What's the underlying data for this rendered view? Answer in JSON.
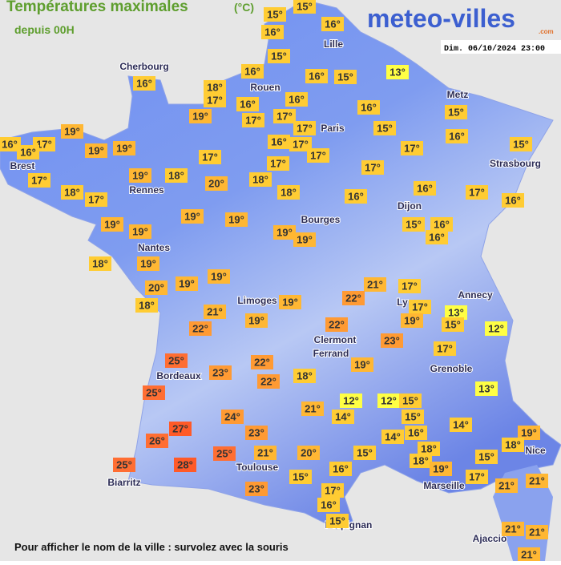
{
  "header": {
    "title": "Températures maximales",
    "unit": "(°C)",
    "subtitle": "depuis 00H",
    "logo": "meteo-villes",
    "logo_suffix": ".com",
    "date": "Dim. 06/10/2024 23:00"
  },
  "cities": [
    "Lille",
    "Cherbourg",
    "Rouen",
    "Metz",
    "Paris",
    "Brest",
    "Strasbourg",
    "Rennes",
    "Dijon",
    "Bourges",
    "Nantes",
    "Annecy",
    "Limoges",
    "Ly",
    "Clermont",
    "Ferrand",
    "Grenoble",
    "Bordeaux",
    "Nice",
    "Toulouse",
    "Marseille",
    "Biarritz",
    "Perpignan",
    "Ajaccio"
  ],
  "temperatures": [
    "15°",
    "15°",
    "16°",
    "16°",
    "15°",
    "16°",
    "18°",
    "17°",
    "16°",
    "16°",
    "15°",
    "13°",
    "16°",
    "16°",
    "16°",
    "15°",
    "19°",
    "17°",
    "17°",
    "17°",
    "15°",
    "16°",
    "19°",
    "16°",
    "17°",
    "16°",
    "19°",
    "19°",
    "16°",
    "17°",
    "17°",
    "17°",
    "15°",
    "17°",
    "17°",
    "19°",
    "18°",
    "20°",
    "18°",
    "17°",
    "17°",
    "18°",
    "17°",
    "18°",
    "16°",
    "16°",
    "17°",
    "16°",
    "19°",
    "19°",
    "19°",
    "19°",
    "15°",
    "16°",
    "16°",
    "19°",
    "19°",
    "18°",
    "19°",
    "19°",
    "19°",
    "20°",
    "21°",
    "17°",
    "18°",
    "19°",
    "22°",
    "21°",
    "17°",
    "13°",
    "15°",
    "19°",
    "12°",
    "22°",
    "19°",
    "22°",
    "23°",
    "17°",
    "25°",
    "22°",
    "19°",
    "23°",
    "22°",
    "18°",
    "13°",
    "25°",
    "21°",
    "12°",
    "12°",
    "15°",
    "14°",
    "15°",
    "24°",
    "14°",
    "27°",
    "23°",
    "16°",
    "14°",
    "19°",
    "26°",
    "18°",
    "18°",
    "25°",
    "21°",
    "20°",
    "15°",
    "18°",
    "15°",
    "19°",
    "16°",
    "25°",
    "28°",
    "15°",
    "17°",
    "21°",
    "21°",
    "23°",
    "17°",
    "16°",
    "15°",
    "21°",
    "21°",
    "21°"
  ],
  "footer": "Pour afficher le nom de la ville : survolez avec la souris"
}
